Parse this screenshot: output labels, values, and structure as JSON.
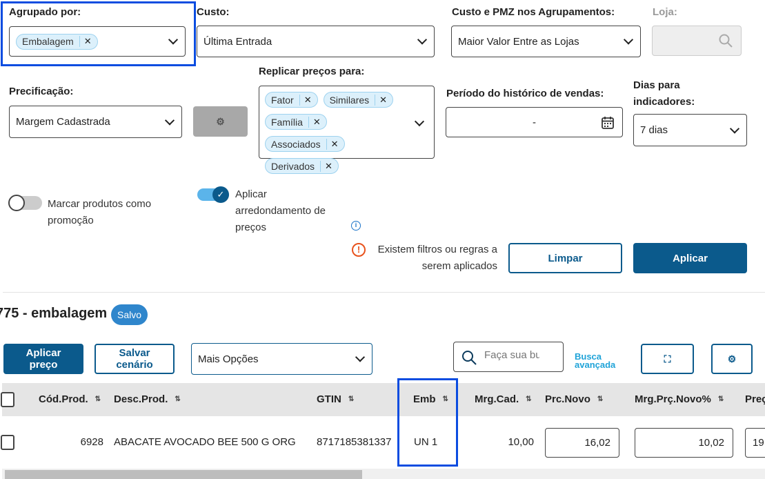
{
  "filters": {
    "agrupado": {
      "label": "Agrupado por:",
      "chips": [
        "Embalagem"
      ]
    },
    "custo": {
      "label": "Custo:",
      "value": "Última Entrada"
    },
    "custo_pmz": {
      "label": "Custo e PMZ nos Agrupamentos:",
      "value": "Maior Valor Entre as Lojas"
    },
    "loja": {
      "label": "Loja:"
    },
    "precificacao": {
      "label": "Precificação:",
      "value": "Margem Cadastrada"
    },
    "replicar": {
      "label": "Replicar preços para:",
      "chips": [
        "Fator",
        "Similares",
        "Família",
        "Associados",
        "Derivados"
      ]
    },
    "periodo": {
      "label": "Período do histórico de vendas:",
      "value": "-"
    },
    "dias": {
      "label_line1": "Dias para",
      "label_line2": "indicadores:",
      "value": "7 dias"
    },
    "toggle_promo": {
      "label_line1": "Marcar produtos como",
      "label_line2": "promoção",
      "on": false
    },
    "toggle_arred": {
      "label_line1": "Aplicar",
      "label_line2": "arredondamento de",
      "label_line3": "preços",
      "on": true
    },
    "warning_line1": "Existem filtros ou regras a",
    "warning_line2": "serem aplicados",
    "limpar": "Limpar",
    "aplicar": "Aplicar"
  },
  "scenario": {
    "title": "775 - embalagem",
    "badge": "Salvo"
  },
  "toolbar": {
    "aplicar_preco_1": "Aplicar",
    "aplicar_preco_2": "preço",
    "salvar_1": "Salvar",
    "salvar_2": "cenário",
    "mais_opcoes": "Mais Opções",
    "search_placeholder": "Faça sua busca",
    "busca_1": "Busca",
    "busca_2": "avançada"
  },
  "table": {
    "headers": [
      "Cód.Prod.",
      "Desc.Prod.",
      "GTIN",
      "Emb",
      "Mrg.Cad.",
      "Prc.Novo",
      "Mrg.Prç.Novo%",
      "Preç"
    ],
    "rows": [
      {
        "cod": "6928",
        "desc": "ABACATE AVOCADO BEE 500 G ORG",
        "gtin": "8717185381337",
        "emb": "UN 1",
        "mrg_cad": "10,00",
        "prc_novo": "16,02",
        "mrg_prc_novo": "10,02",
        "prec": "19"
      }
    ]
  },
  "colors": {
    "primary": "#0b5a8c",
    "highlight": "#0a4ce0",
    "chip_bg": "#dcf0fb",
    "badge": "#2f86cc",
    "warning": "#e8521c",
    "link": "#1fa3d8"
  }
}
